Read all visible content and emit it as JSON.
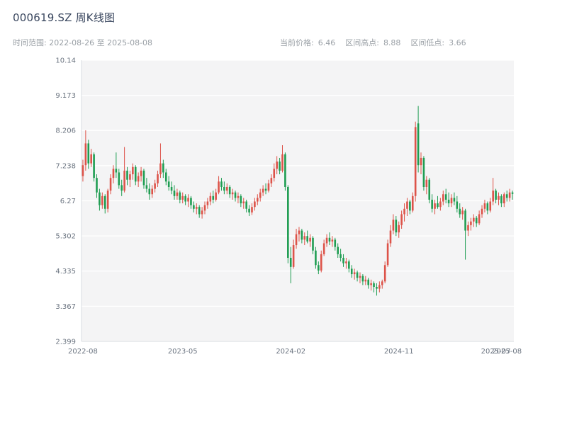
{
  "header": {
    "title": "000619.SZ 周K线图",
    "subtitle_left": "时间范围: 2022-08-26 至 2025-08-08"
  },
  "stats": {
    "current_label": "当前价格:",
    "current_value": "6.46",
    "high_label": "区间高点:",
    "high_value": "8.88",
    "low_label": "区间低点:",
    "low_value": "3.66"
  },
  "colors": {
    "up": "#dd5349",
    "down": "#1f9d52",
    "plot_bg": "#f4f4f5",
    "grid": "#ffffff",
    "spine": "#d9dde2",
    "tick_text": "#6b7480",
    "title_text": "#39465e",
    "subtitle_text": "#9aa0a6"
  },
  "chart_data": {
    "type": "candlestick",
    "title": "000619.SZ 周K线图",
    "frequency": "weekly",
    "date_range": [
      "2022-08-26",
      "2025-08-08"
    ],
    "current_price": 6.46,
    "range_high": 8.88,
    "range_low": 3.66,
    "ylim": [
      2.399,
      10.14
    ],
    "y_ticks": [
      10.14,
      9.173,
      8.206,
      7.238,
      6.27,
      5.302,
      4.335,
      3.367,
      2.399
    ],
    "x_tick_labels": [
      "2022-08",
      "2023-05",
      "2024-02",
      "2024-11",
      "2025-07",
      "2025-08"
    ],
    "x_tick_positions": [
      0,
      36,
      75,
      114,
      149,
      153
    ],
    "grid": "horizontal",
    "legend": "none",
    "candles_format": [
      "open",
      "high",
      "low",
      "close"
    ],
    "candles": [
      [
        6.95,
        7.4,
        6.8,
        7.25
      ],
      [
        7.25,
        8.21,
        7.1,
        7.85
      ],
      [
        7.85,
        7.95,
        7.15,
        7.3
      ],
      [
        7.3,
        7.7,
        7.2,
        7.55
      ],
      [
        7.55,
        7.6,
        6.8,
        6.9
      ],
      [
        6.9,
        7.0,
        6.35,
        6.5
      ],
      [
        6.5,
        6.6,
        6.0,
        6.15
      ],
      [
        6.15,
        6.5,
        6.05,
        6.4
      ],
      [
        6.4,
        6.45,
        5.92,
        6.05
      ],
      [
        6.05,
        6.6,
        5.95,
        6.55
      ],
      [
        6.55,
        7.0,
        6.45,
        6.9
      ],
      [
        6.9,
        7.25,
        6.75,
        7.15
      ],
      [
        7.15,
        7.6,
        6.9,
        7.05
      ],
      [
        7.05,
        7.15,
        6.6,
        6.7
      ],
      [
        6.7,
        6.85,
        6.4,
        6.55
      ],
      [
        6.55,
        7.75,
        6.5,
        7.1
      ],
      [
        7.1,
        7.2,
        6.7,
        6.85
      ],
      [
        6.85,
        7.1,
        6.65,
        7.0
      ],
      [
        7.0,
        7.3,
        6.85,
        7.2
      ],
      [
        7.2,
        7.25,
        6.7,
        6.8
      ],
      [
        6.8,
        7.05,
        6.65,
        6.95
      ],
      [
        6.95,
        7.2,
        6.8,
        7.1
      ],
      [
        7.1,
        7.15,
        6.6,
        6.7
      ],
      [
        6.7,
        6.9,
        6.5,
        6.6
      ],
      [
        6.6,
        6.75,
        6.3,
        6.45
      ],
      [
        6.45,
        6.7,
        6.35,
        6.6
      ],
      [
        6.6,
        6.85,
        6.5,
        6.75
      ],
      [
        6.75,
        7.1,
        6.65,
        7.0
      ],
      [
        7.0,
        7.85,
        6.9,
        7.3
      ],
      [
        7.3,
        7.4,
        6.9,
        7.05
      ],
      [
        7.05,
        7.15,
        6.7,
        6.8
      ],
      [
        6.8,
        6.95,
        6.55,
        6.65
      ],
      [
        6.65,
        6.8,
        6.45,
        6.55
      ],
      [
        6.55,
        6.7,
        6.3,
        6.4
      ],
      [
        6.4,
        6.6,
        6.3,
        6.5
      ],
      [
        6.5,
        6.55,
        6.2,
        6.3
      ],
      [
        6.3,
        6.5,
        6.2,
        6.4
      ],
      [
        6.4,
        6.45,
        6.15,
        6.25
      ],
      [
        6.25,
        6.45,
        6.1,
        6.35
      ],
      [
        6.35,
        6.4,
        6.05,
        6.15
      ],
      [
        6.15,
        6.25,
        5.95,
        6.05
      ],
      [
        6.05,
        6.2,
        5.9,
        6.1
      ],
      [
        6.1,
        6.15,
        5.8,
        5.9
      ],
      [
        5.9,
        6.1,
        5.78,
        6.0
      ],
      [
        6.0,
        6.25,
        5.9,
        6.15
      ],
      [
        6.15,
        6.35,
        6.05,
        6.25
      ],
      [
        6.25,
        6.5,
        6.15,
        6.4
      ],
      [
        6.4,
        6.55,
        6.2,
        6.3
      ],
      [
        6.3,
        6.6,
        6.25,
        6.5
      ],
      [
        6.5,
        6.95,
        6.45,
        6.8
      ],
      [
        6.8,
        6.9,
        6.55,
        6.65
      ],
      [
        6.65,
        6.8,
        6.45,
        6.55
      ],
      [
        6.55,
        6.75,
        6.45,
        6.65
      ],
      [
        6.65,
        6.7,
        6.35,
        6.45
      ],
      [
        6.45,
        6.6,
        6.3,
        6.5
      ],
      [
        6.5,
        6.55,
        6.25,
        6.35
      ],
      [
        6.35,
        6.5,
        6.2,
        6.4
      ],
      [
        6.4,
        6.45,
        6.1,
        6.2
      ],
      [
        6.2,
        6.35,
        6.05,
        6.25
      ],
      [
        6.25,
        6.3,
        5.95,
        6.05
      ],
      [
        6.05,
        6.15,
        5.85,
        5.95
      ],
      [
        5.95,
        6.2,
        5.88,
        6.1
      ],
      [
        6.1,
        6.35,
        6.0,
        6.25
      ],
      [
        6.25,
        6.45,
        6.15,
        6.35
      ],
      [
        6.35,
        6.6,
        6.25,
        6.5
      ],
      [
        6.5,
        6.7,
        6.4,
        6.6
      ],
      [
        6.6,
        6.75,
        6.45,
        6.55
      ],
      [
        6.55,
        6.85,
        6.5,
        6.75
      ],
      [
        6.75,
        7.0,
        6.65,
        6.9
      ],
      [
        6.9,
        7.3,
        6.8,
        7.15
      ],
      [
        7.15,
        7.5,
        7.0,
        7.35
      ],
      [
        7.35,
        7.45,
        7.0,
        7.1
      ],
      [
        7.1,
        7.8,
        7.05,
        7.55
      ],
      [
        7.55,
        7.6,
        6.55,
        6.65
      ],
      [
        6.65,
        6.7,
        4.55,
        4.7
      ],
      [
        4.7,
        5.0,
        4.0,
        4.45
      ],
      [
        4.45,
        5.2,
        4.4,
        5.05
      ],
      [
        5.05,
        5.5,
        4.95,
        5.35
      ],
      [
        5.35,
        5.55,
        5.15,
        5.45
      ],
      [
        5.45,
        5.5,
        5.1,
        5.2
      ],
      [
        5.2,
        5.4,
        5.05,
        5.3
      ],
      [
        5.3,
        5.45,
        5.1,
        5.15
      ],
      [
        5.15,
        5.35,
        5.0,
        5.25
      ],
      [
        5.25,
        5.3,
        4.8,
        4.9
      ],
      [
        4.9,
        5.0,
        4.4,
        4.5
      ],
      [
        4.5,
        4.6,
        4.25,
        4.35
      ],
      [
        4.35,
        4.9,
        4.3,
        4.8
      ],
      [
        4.8,
        5.2,
        4.75,
        5.1
      ],
      [
        5.1,
        5.35,
        5.0,
        5.25
      ],
      [
        5.25,
        5.4,
        5.05,
        5.15
      ],
      [
        5.15,
        5.3,
        5.0,
        5.2
      ],
      [
        5.2,
        5.25,
        4.9,
        5.0
      ],
      [
        5.0,
        5.1,
        4.7,
        4.8
      ],
      [
        4.8,
        4.95,
        4.6,
        4.7
      ],
      [
        4.7,
        4.8,
        4.45,
        4.55
      ],
      [
        4.55,
        4.7,
        4.4,
        4.6
      ],
      [
        4.6,
        4.65,
        4.3,
        4.4
      ],
      [
        4.4,
        4.5,
        4.15,
        4.25
      ],
      [
        4.25,
        4.4,
        4.1,
        4.3
      ],
      [
        4.3,
        4.35,
        4.05,
        4.15
      ],
      [
        4.15,
        4.3,
        4.0,
        4.2
      ],
      [
        4.2,
        4.25,
        3.95,
        4.05
      ],
      [
        4.05,
        4.2,
        3.95,
        4.1
      ],
      [
        4.1,
        4.15,
        3.85,
        3.95
      ],
      [
        3.95,
        4.1,
        3.8,
        4.0
      ],
      [
        4.0,
        4.05,
        3.75,
        3.9
      ],
      [
        3.9,
        4.0,
        3.66,
        3.85
      ],
      [
        3.85,
        4.05,
        3.75,
        3.95
      ],
      [
        3.95,
        4.1,
        3.85,
        4.05
      ],
      [
        4.05,
        4.6,
        4.0,
        4.5
      ],
      [
        4.5,
        5.2,
        4.45,
        5.1
      ],
      [
        5.1,
        5.6,
        5.0,
        5.45
      ],
      [
        5.45,
        5.9,
        5.35,
        5.75
      ],
      [
        5.75,
        5.85,
        5.3,
        5.4
      ],
      [
        5.4,
        5.7,
        5.25,
        5.6
      ],
      [
        5.6,
        6.0,
        5.5,
        5.9
      ],
      [
        5.9,
        6.2,
        5.7,
        6.05
      ],
      [
        6.05,
        6.35,
        5.85,
        6.25
      ],
      [
        6.25,
        6.3,
        5.9,
        6.0
      ],
      [
        6.0,
        6.5,
        5.95,
        6.4
      ],
      [
        6.4,
        8.45,
        6.25,
        8.3
      ],
      [
        8.4,
        8.88,
        7.05,
        7.25
      ],
      [
        7.25,
        7.6,
        7.0,
        7.45
      ],
      [
        7.45,
        7.5,
        6.55,
        6.65
      ],
      [
        6.65,
        6.95,
        6.45,
        6.85
      ],
      [
        6.85,
        6.9,
        6.2,
        6.3
      ],
      [
        6.3,
        6.45,
        5.95,
        6.05
      ],
      [
        6.05,
        6.3,
        5.9,
        6.2
      ],
      [
        6.2,
        6.4,
        6.05,
        6.1
      ],
      [
        6.1,
        6.35,
        6.0,
        6.25
      ],
      [
        6.25,
        6.55,
        6.15,
        6.45
      ],
      [
        6.45,
        6.6,
        6.2,
        6.3
      ],
      [
        6.3,
        6.5,
        6.1,
        6.2
      ],
      [
        6.2,
        6.45,
        6.1,
        6.35
      ],
      [
        6.35,
        6.5,
        6.15,
        6.25
      ],
      [
        6.25,
        6.4,
        5.95,
        6.05
      ],
      [
        6.05,
        6.2,
        5.8,
        5.9
      ],
      [
        5.9,
        6.1,
        5.75,
        6.0
      ],
      [
        6.0,
        6.05,
        4.65,
        5.45
      ],
      [
        5.45,
        5.7,
        5.3,
        5.6
      ],
      [
        5.6,
        5.8,
        5.45,
        5.7
      ],
      [
        5.7,
        5.9,
        5.55,
        5.8
      ],
      [
        5.8,
        5.85,
        5.55,
        5.65
      ],
      [
        5.65,
        6.0,
        5.6,
        5.9
      ],
      [
        5.9,
        6.15,
        5.8,
        6.05
      ],
      [
        6.05,
        6.3,
        5.95,
        6.2
      ],
      [
        6.2,
        6.25,
        5.9,
        6.0
      ],
      [
        6.0,
        6.35,
        5.95,
        6.25
      ],
      [
        6.25,
        6.9,
        6.15,
        6.55
      ],
      [
        6.55,
        6.6,
        6.2,
        6.3
      ],
      [
        6.3,
        6.5,
        6.15,
        6.4
      ],
      [
        6.4,
        6.45,
        6.1,
        6.2
      ],
      [
        6.2,
        6.5,
        6.1,
        6.45
      ],
      [
        6.45,
        6.55,
        6.25,
        6.35
      ],
      [
        6.35,
        6.6,
        6.25,
        6.5
      ],
      [
        6.5,
        6.55,
        6.3,
        6.46
      ]
    ]
  }
}
